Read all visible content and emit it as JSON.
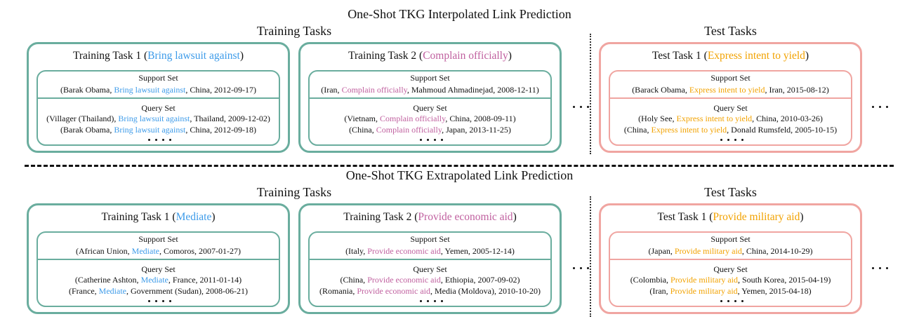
{
  "sections": [
    {
      "title": "One-Shot TKG Interpolated Link Prediction",
      "training_header": "Training Tasks",
      "test_header": "Test Tasks",
      "tasks": [
        {
          "color": "#3d9be9",
          "title_pre": "Training Task 1 (",
          "relation": "Bring lawsuit against",
          "title_post": ")",
          "support_label": "Support Set",
          "support": [
            {
              "pre": "(Barak Obama, ",
              "rel": "Bring lawsuit against",
              "post": ", China, 2012-09-17)"
            }
          ],
          "query_label": "Query Set",
          "query": [
            {
              "pre": "(Villager (Thailand), ",
              "rel": "Bring lawsuit against",
              "post": ", Thailand, 2009-12-02)"
            },
            {
              "pre": "(Barak Obama, ",
              "rel": "Bring lawsuit against",
              "post": ", China, 2012-09-18)"
            }
          ]
        },
        {
          "color": "#c0609f",
          "title_pre": "Training Task 2 (",
          "relation": "Complain officially",
          "title_post": ")",
          "support_label": "Support Set",
          "support": [
            {
              "pre": "(Iran, ",
              "rel": "Complain officially",
              "post": ", Mahmoud Ahmadinejad, 2008-12-11)"
            }
          ],
          "query_label": "Query Set",
          "query": [
            {
              "pre": "(Vietnam, ",
              "rel": "Complain officially",
              "post": ", China, 2008-09-11)"
            },
            {
              "pre": "(China, ",
              "rel": "Complain officially",
              "post": ", Japan, 2013-11-25)"
            }
          ]
        },
        {
          "color": "#f2a200",
          "title_pre": "Test Task 1 (",
          "relation": "Express intent to yield",
          "title_post": ")",
          "support_label": "Support Set",
          "support": [
            {
              "pre": "(Barack Obama, ",
              "rel": "Express intent to yield",
              "post": ", Iran, 2015-08-12)"
            }
          ],
          "query_label": "Query Set",
          "query": [
            {
              "pre": "(Holy See, ",
              "rel": "Express intent to yield",
              "post": ", China, 2010-03-26)"
            },
            {
              "pre": "(China, ",
              "rel": "Express intent to yield",
              "post": ", Donald Rumsfeld, 2005-10-15)"
            }
          ]
        }
      ]
    },
    {
      "title": "One-Shot TKG Extrapolated Link Prediction",
      "training_header": "Training Tasks",
      "test_header": "Test Tasks",
      "tasks": [
        {
          "color": "#3d9be9",
          "title_pre": "Training Task 1 (",
          "relation": "Mediate",
          "title_post": ")",
          "support_label": "Support Set",
          "support": [
            {
              "pre": "(African Union, ",
              "rel": "Mediate",
              "post": ", Comoros, 2007-01-27)"
            }
          ],
          "query_label": "Query Set",
          "query": [
            {
              "pre": "(Catherine Ashton, ",
              "rel": "Mediate",
              "post": ", France, 2011-01-14)"
            },
            {
              "pre": "(France, ",
              "rel": "Mediate",
              "post": ", Government (Sudan), 2008-06-21)"
            }
          ]
        },
        {
          "color": "#c0609f",
          "title_pre": "Training Task 2 (",
          "relation": "Provide economic aid",
          "title_post": ")",
          "support_label": "Support Set",
          "support": [
            {
              "pre": "(Italy, ",
              "rel": "Provide economic aid",
              "post": ", Yemen, 2005-12-14)"
            }
          ],
          "query_label": "Query Set",
          "query": [
            {
              "pre": "(China, ",
              "rel": "Provide economic aid",
              "post": ", Ethiopia, 2007-09-02)"
            },
            {
              "pre": "(Romania, ",
              "rel": "Provide economic aid",
              "post": ", Media (Moldova), 2010-10-20)"
            }
          ]
        },
        {
          "color": "#f2a200",
          "title_pre": "Test Task 1 (",
          "relation": "Provide military aid",
          "title_post": ")",
          "support_label": "Support Set",
          "support": [
            {
              "pre": "(Japan, ",
              "rel": "Provide military aid",
              "post": ", China, 2014-10-29)"
            }
          ],
          "query_label": "Query Set",
          "query": [
            {
              "pre": "(Colombia, ",
              "rel": "Provide military aid",
              "post": ", South Korea, 2015-04-19)"
            },
            {
              "pre": "(Iran, ",
              "rel": "Provide military aid",
              "post": ", Yemen, 2015-04-18)"
            }
          ]
        }
      ]
    }
  ]
}
